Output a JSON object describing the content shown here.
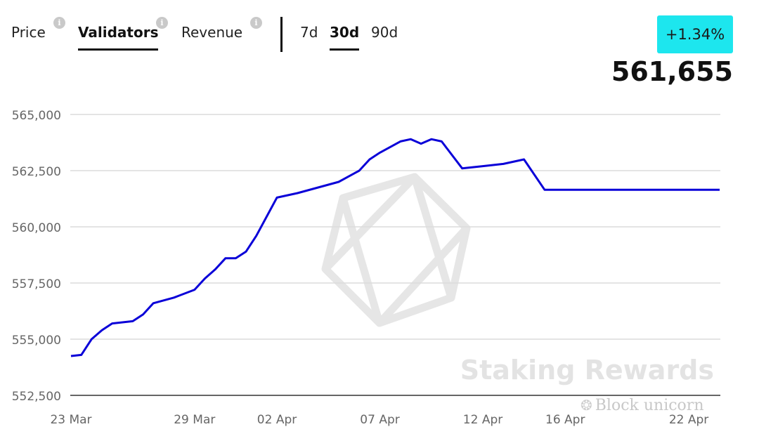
{
  "tabs": [
    {
      "label": "Price",
      "info": "i"
    },
    {
      "label": "Validators",
      "info": "i"
    },
    {
      "label": "Revenue",
      "info": "i"
    }
  ],
  "ranges": [
    "7d",
    "30d",
    "90d"
  ],
  "active_tab": "Validators",
  "active_range": "30d",
  "change_badge": "+1.34%",
  "current_value": "561,655",
  "colors": {
    "line": "#0a00d8",
    "badge": "#1de6ee",
    "grid": "#dcdcdc",
    "watermark": "#e3e3e3"
  },
  "chart_data": {
    "type": "line",
    "title": "",
    "xlabel": "",
    "ylabel": "",
    "ylim": [
      552500,
      565000
    ],
    "y_ticks": [
      "552,500",
      "555,000",
      "557,500",
      "560,000",
      "562,500",
      "565,000"
    ],
    "y_tick_values": [
      552500,
      555000,
      557500,
      560000,
      562500,
      565000
    ],
    "x_tick_labels": [
      "23 Mar",
      "29 Mar",
      "02 Apr",
      "07 Apr",
      "12 Apr",
      "16 Apr",
      "22 Apr"
    ],
    "x_tick_day_index": [
      0,
      6,
      10,
      15,
      20,
      24,
      30
    ],
    "grid": true,
    "legend": "none",
    "series": [
      {
        "values_by_day": [
          [
            0.0,
            554250
          ],
          [
            0.5,
            554300
          ],
          [
            1.0,
            555000
          ],
          [
            1.5,
            555400
          ],
          [
            2.0,
            555700
          ],
          [
            3.0,
            555800
          ],
          [
            3.5,
            556100
          ],
          [
            4.0,
            556600
          ],
          [
            5.0,
            556850
          ],
          [
            6.0,
            557200
          ],
          [
            6.5,
            557700
          ],
          [
            7.0,
            558100
          ],
          [
            7.5,
            558600
          ],
          [
            8.0,
            558600
          ],
          [
            8.5,
            558900
          ],
          [
            9.0,
            559600
          ],
          [
            10.0,
            561300
          ],
          [
            11.0,
            561500
          ],
          [
            12.0,
            561750
          ],
          [
            13.0,
            562000
          ],
          [
            14.0,
            562500
          ],
          [
            14.5,
            563000
          ],
          [
            15.0,
            563300
          ],
          [
            16.0,
            563800
          ],
          [
            16.5,
            563900
          ],
          [
            17.0,
            563700
          ],
          [
            17.5,
            563900
          ],
          [
            18.0,
            563800
          ],
          [
            19.0,
            562600
          ],
          [
            20.0,
            562700
          ],
          [
            21.0,
            562800
          ],
          [
            22.0,
            563000
          ],
          [
            23.0,
            561650
          ],
          [
            31.5,
            561650
          ]
        ]
      }
    ],
    "watermark_text": "Staking Rewards"
  },
  "source_watermark": {
    "text": "Block unicorn",
    "icon": "wechat-icon"
  }
}
